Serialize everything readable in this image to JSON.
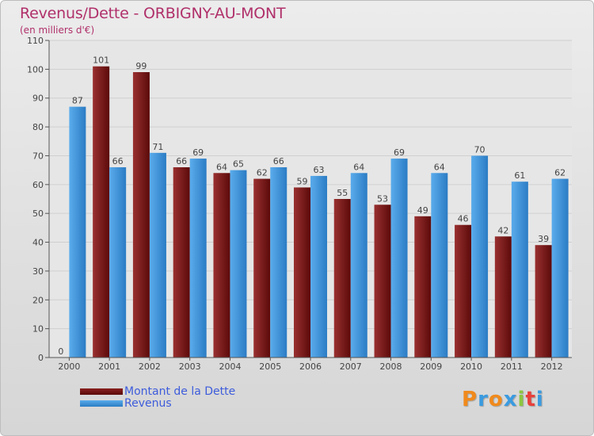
{
  "header": {
    "title": "Revenus/Dette - ORBIGNY-AU-MONT",
    "subtitle": "(en milliers d'€)"
  },
  "chart_data": {
    "type": "bar",
    "title": "Revenus/Dette - ORBIGNY-AU-MONT",
    "subtitle": "(en milliers d'€)",
    "categories": [
      "2000",
      "2001",
      "2002",
      "2003",
      "2004",
      "2005",
      "2006",
      "2007",
      "2008",
      "2009",
      "2010",
      "2011",
      "2012"
    ],
    "series": [
      {
        "name": "Montant de la Dette",
        "color": "#7a1a1a",
        "values": [
          0,
          101,
          99,
          66,
          64,
          62,
          59,
          55,
          53,
          49,
          46,
          42,
          39
        ]
      },
      {
        "name": "Revenus",
        "color": "#3d95dc",
        "values": [
          87,
          66,
          71,
          69,
          65,
          66,
          63,
          64,
          69,
          64,
          70,
          61,
          62
        ]
      }
    ],
    "yticks": [
      0,
      10,
      20,
      30,
      40,
      50,
      60,
      70,
      80,
      90,
      100,
      110
    ],
    "ylim": [
      0,
      110
    ],
    "xlabel": "",
    "ylabel": "",
    "grid": true,
    "legend_position": "bottom-left"
  },
  "logo": {
    "letters": [
      "P",
      "r",
      "o",
      "x",
      "i",
      "t",
      "i"
    ],
    "colors": [
      "#f08a1c",
      "#3a9be0",
      "#f08a1c",
      "#3a9be0",
      "#8cc63f",
      "#e8403a",
      "#3a9be0"
    ]
  }
}
